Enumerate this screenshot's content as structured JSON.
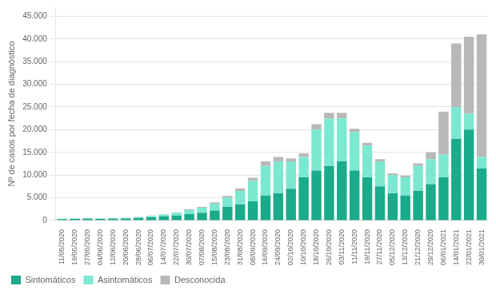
{
  "chart_data": {
    "type": "bar",
    "stacked": true,
    "ylabel": "Nº de casos por fecha de diagnóstico",
    "categories": [
      "11/05/2020",
      "19/05/2020",
      "27/05/2020",
      "04/06/2020",
      "12/06/2020",
      "20/06/2020",
      "28/06/2020",
      "06/07/2020",
      "14/07/2020",
      "22/07/2020",
      "30/07/2020",
      "07/08/2020",
      "15/08/2020",
      "23/08/2020",
      "31/08/2020",
      "08/09/2020",
      "16/09/2020",
      "24/09/2020",
      "02/10/2020",
      "10/10/2020",
      "18/10/2020",
      "26/10/2020",
      "03/11/2020",
      "11/11/2020",
      "19/11/2020",
      "27/11/2020",
      "05/12/2020",
      "13/12/2020",
      "21/12/2020",
      "29/12/2020",
      "06/01/2021",
      "14/01/2021",
      "22/01/2021",
      "30/01/2021"
    ],
    "series": [
      {
        "name": "Sintomáticos",
        "color": "#1aab8a",
        "values": [
          300,
          350,
          400,
          350,
          400,
          450,
          550,
          700,
          900,
          1100,
          1400,
          1700,
          2200,
          3000,
          3500,
          4200,
          5500,
          6000,
          7000,
          9500,
          11000,
          12000,
          13000,
          11000,
          9500,
          7500,
          6000,
          5500,
          6500,
          8000,
          9500,
          18000,
          20000,
          11500
        ]
      },
      {
        "name": "Asintomáticos",
        "color": "#7de8d0",
        "values": [
          80,
          90,
          100,
          80,
          100,
          130,
          200,
          300,
          400,
          600,
          900,
          1100,
          1500,
          2000,
          3000,
          4500,
          6500,
          7000,
          6000,
          4500,
          9000,
          10500,
          9500,
          8500,
          7000,
          5500,
          4000,
          4000,
          5500,
          5500,
          5000,
          7000,
          3500,
          2500
        ]
      },
      {
        "name": "Desconocida",
        "color": "#b8b8b8",
        "values": [
          20,
          20,
          30,
          30,
          30,
          50,
          50,
          100,
          100,
          100,
          150,
          200,
          300,
          400,
          600,
          700,
          1000,
          1000,
          700,
          800,
          1200,
          1200,
          1200,
          700,
          600,
          500,
          400,
          400,
          600,
          1500,
          9500,
          14000,
          17000,
          27000
        ]
      }
    ],
    "ylim": [
      0,
      47000
    ],
    "yticks": [
      0,
      {
        "value": 5000,
        "label": "5.000"
      },
      {
        "value": 10000,
        "label": "10.000"
      },
      {
        "value": 15000,
        "label": "15.000"
      },
      {
        "value": 20000,
        "label": "20.000"
      },
      {
        "value": 25000,
        "label": "25.000"
      },
      {
        "value": 30000,
        "label": "30.000"
      },
      {
        "value": 35000,
        "label": "35.000"
      },
      {
        "value": 40000,
        "label": "40.000"
      },
      {
        "value": 45000,
        "label": "45.000"
      }
    ],
    "grid": "y",
    "legend": "lower left"
  }
}
